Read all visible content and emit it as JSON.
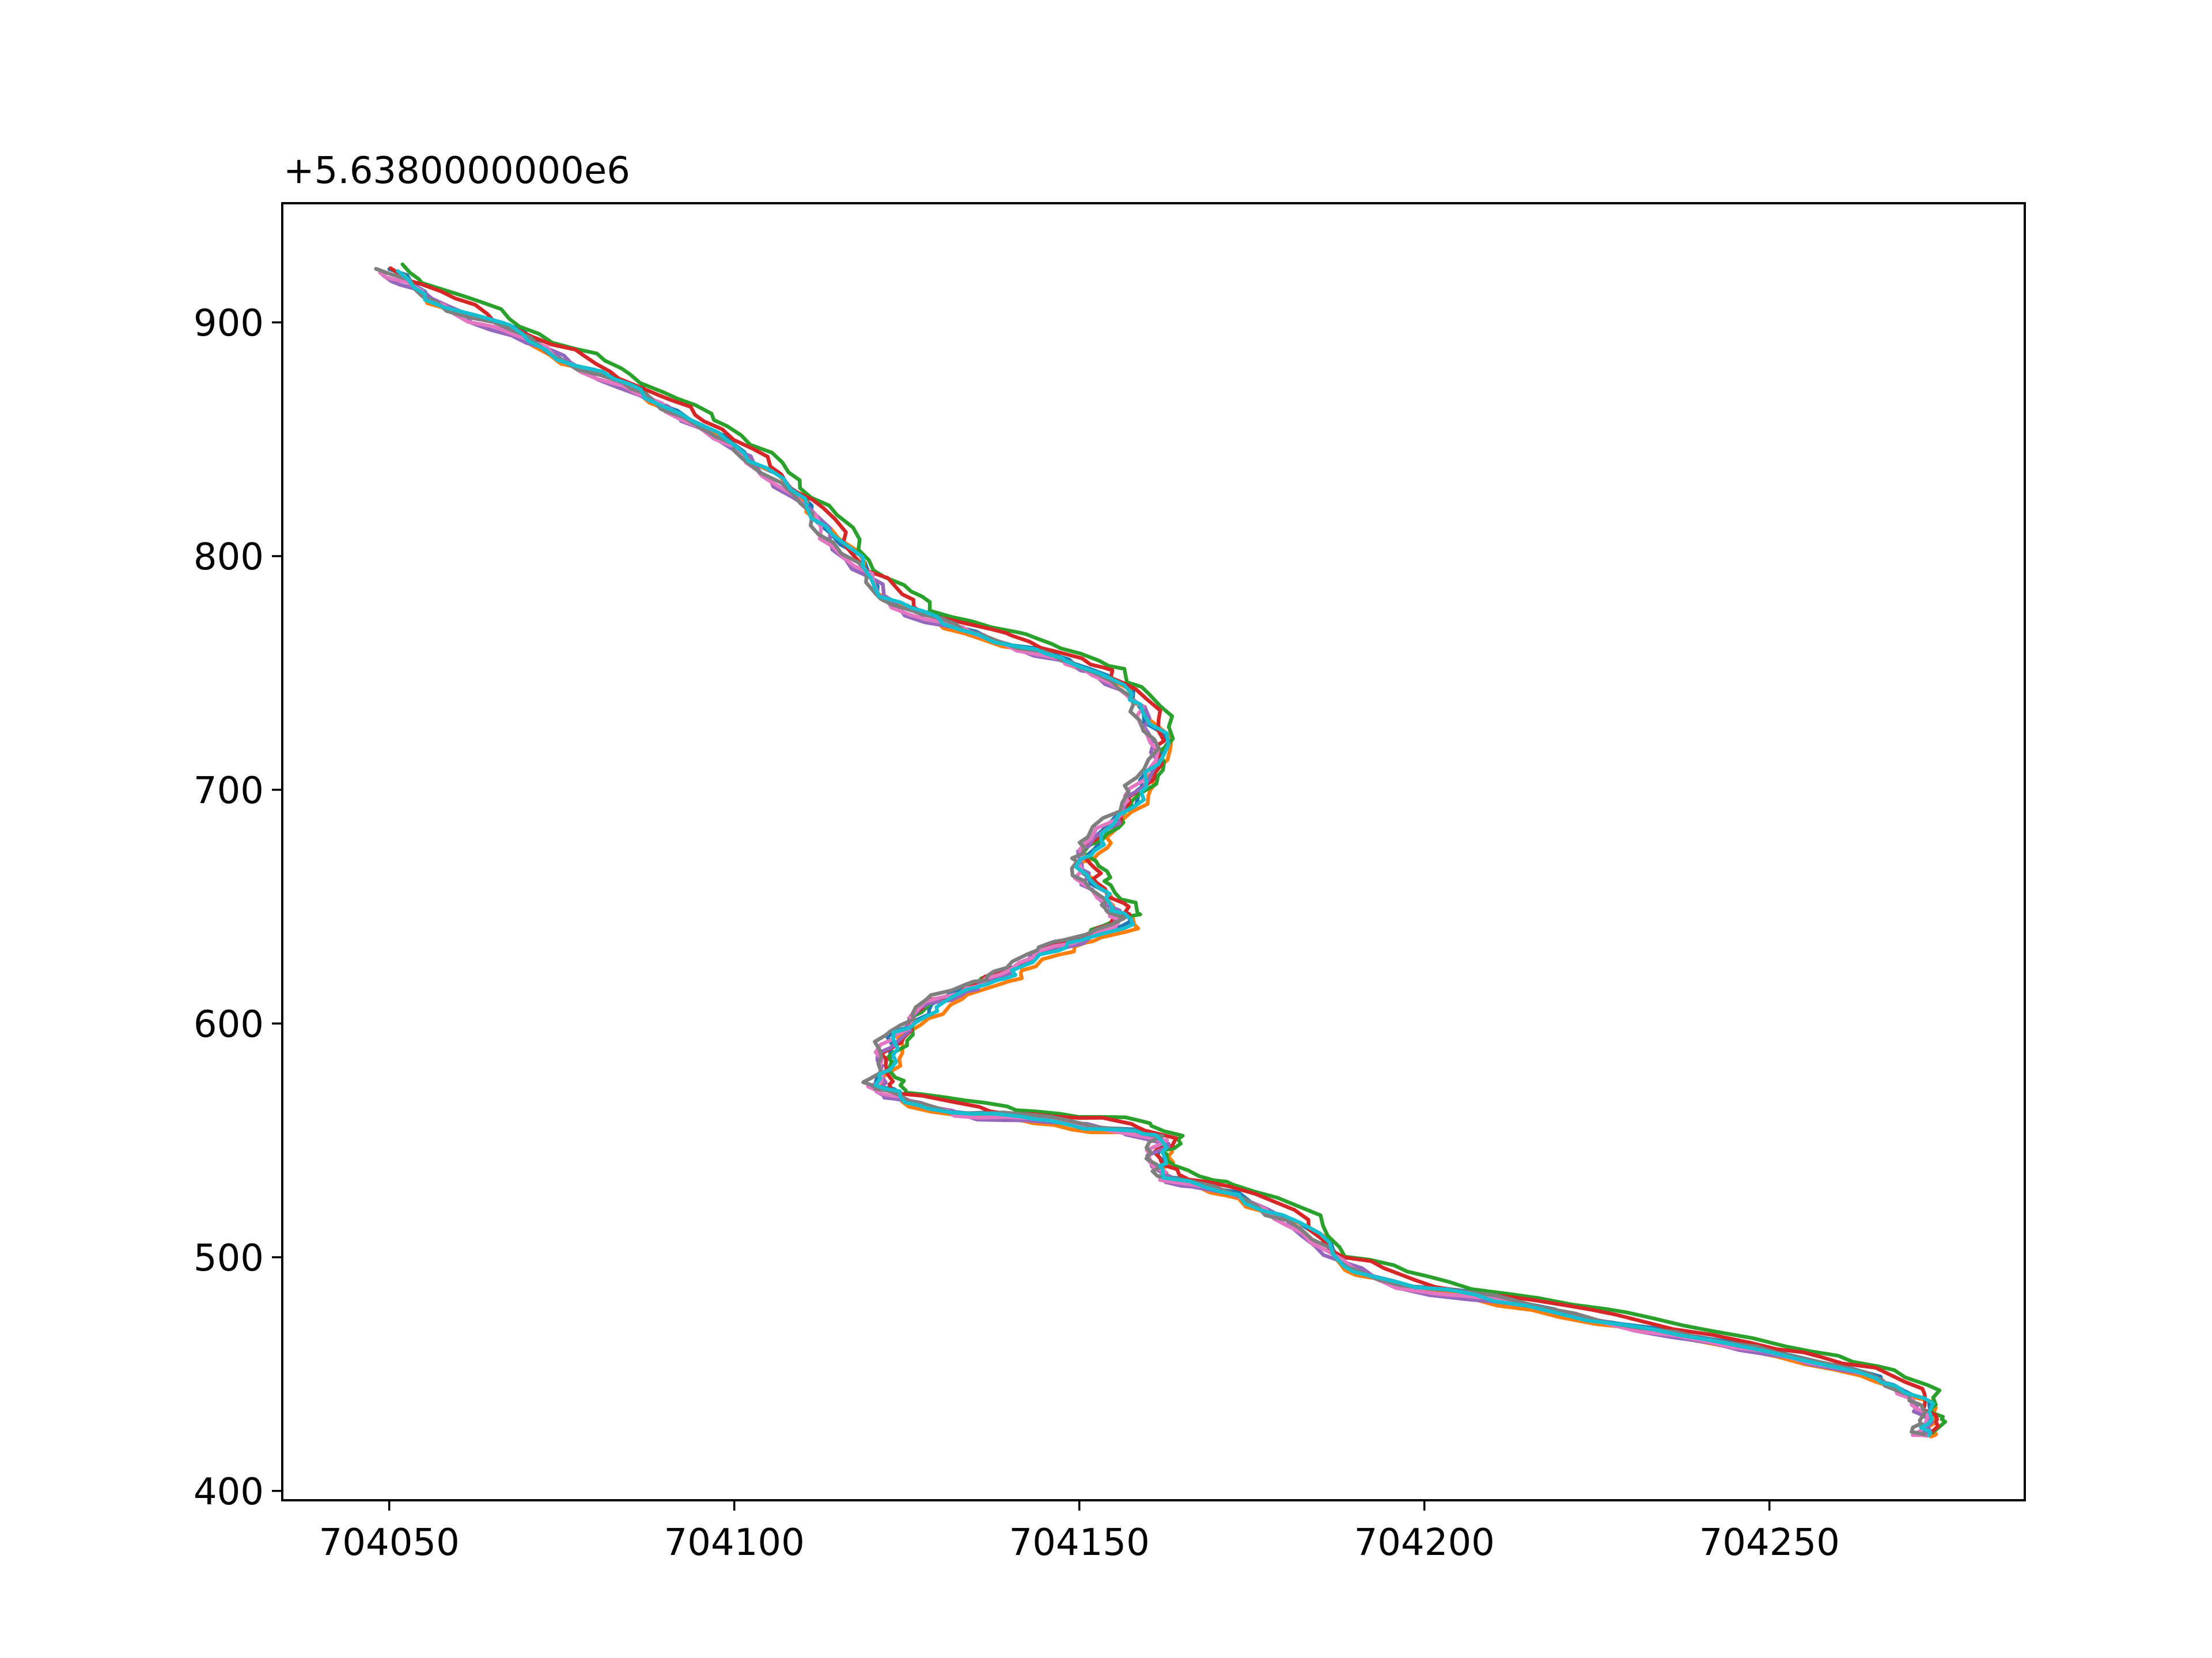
{
  "chart_data": {
    "type": "line",
    "title": "",
    "xlabel": "",
    "ylabel": "",
    "y_offset_label": "+5.6380000000e6",
    "xlim": [
      704034.5,
      704287
    ],
    "ylim": [
      396,
      951
    ],
    "x_ticks": [
      704050,
      704100,
      704150,
      704200,
      704250
    ],
    "x_tick_labels": [
      "704050",
      "704100",
      "704150",
      "704200",
      "704250"
    ],
    "y_ticks": [
      400,
      500,
      600,
      700,
      800,
      900
    ],
    "y_tick_labels": [
      "400",
      "500",
      "600",
      "700",
      "800",
      "900"
    ],
    "grid": false,
    "legend": false,
    "base_path": [
      [
        704050,
        922
      ],
      [
        704056,
        911
      ],
      [
        704066,
        899
      ],
      [
        704075,
        886
      ],
      [
        704084,
        874
      ],
      [
        704092,
        862
      ],
      [
        704100,
        848
      ],
      [
        704106,
        834
      ],
      [
        704112,
        818
      ],
      [
        704117,
        800
      ],
      [
        704122,
        784
      ],
      [
        704128,
        774
      ],
      [
        704138,
        765
      ],
      [
        704147,
        757
      ],
      [
        704154,
        749
      ],
      [
        704159,
        737
      ],
      [
        704162,
        720
      ],
      [
        704160,
        705
      ],
      [
        704157,
        693
      ],
      [
        704153,
        680
      ],
      [
        704150,
        670
      ],
      [
        704152,
        660
      ],
      [
        704155,
        650
      ],
      [
        704157,
        644
      ],
      [
        704150,
        636
      ],
      [
        704144,
        630
      ],
      [
        704140,
        622
      ],
      [
        704134,
        615
      ],
      [
        704128,
        607
      ],
      [
        704124,
        596
      ],
      [
        704122,
        585
      ],
      [
        704121,
        574
      ],
      [
        704124,
        568
      ],
      [
        704134,
        562
      ],
      [
        704146,
        559
      ],
      [
        704157,
        555
      ],
      [
        704163,
        550
      ],
      [
        704161,
        542
      ],
      [
        704163,
        534
      ],
      [
        704172,
        528
      ],
      [
        704182,
        515
      ],
      [
        704188,
        498
      ],
      [
        704198,
        488
      ],
      [
        704215,
        480
      ],
      [
        704232,
        470
      ],
      [
        704250,
        460
      ],
      [
        704265,
        450
      ],
      [
        704272,
        440
      ],
      [
        704273,
        430
      ],
      [
        704273,
        424
      ]
    ],
    "series": [
      {
        "color": "#1f77b4",
        "dx": 0.0,
        "dy": 0.0,
        "phase": 0.0
      },
      {
        "color": "#ff7f0e",
        "dx": 0.9,
        "dy": -2.5,
        "phase": 1.1
      },
      {
        "color": "#2ca02c",
        "dx": 1.6,
        "dy": 3.0,
        "phase": 2.3
      },
      {
        "color": "#d62728",
        "dx": 0.6,
        "dy": 1.8,
        "phase": 3.2
      },
      {
        "color": "#9467bd",
        "dx": -0.5,
        "dy": -1.2,
        "phase": 4.0
      },
      {
        "color": "#e377c2",
        "dx": -0.9,
        "dy": -0.6,
        "phase": 4.9
      },
      {
        "color": "#7f7f7f",
        "dx": -1.3,
        "dy": 0.7,
        "phase": 5.6
      },
      {
        "color": "#17becf",
        "dx": 0.3,
        "dy": -0.9,
        "phase": 0.6
      }
    ]
  }
}
